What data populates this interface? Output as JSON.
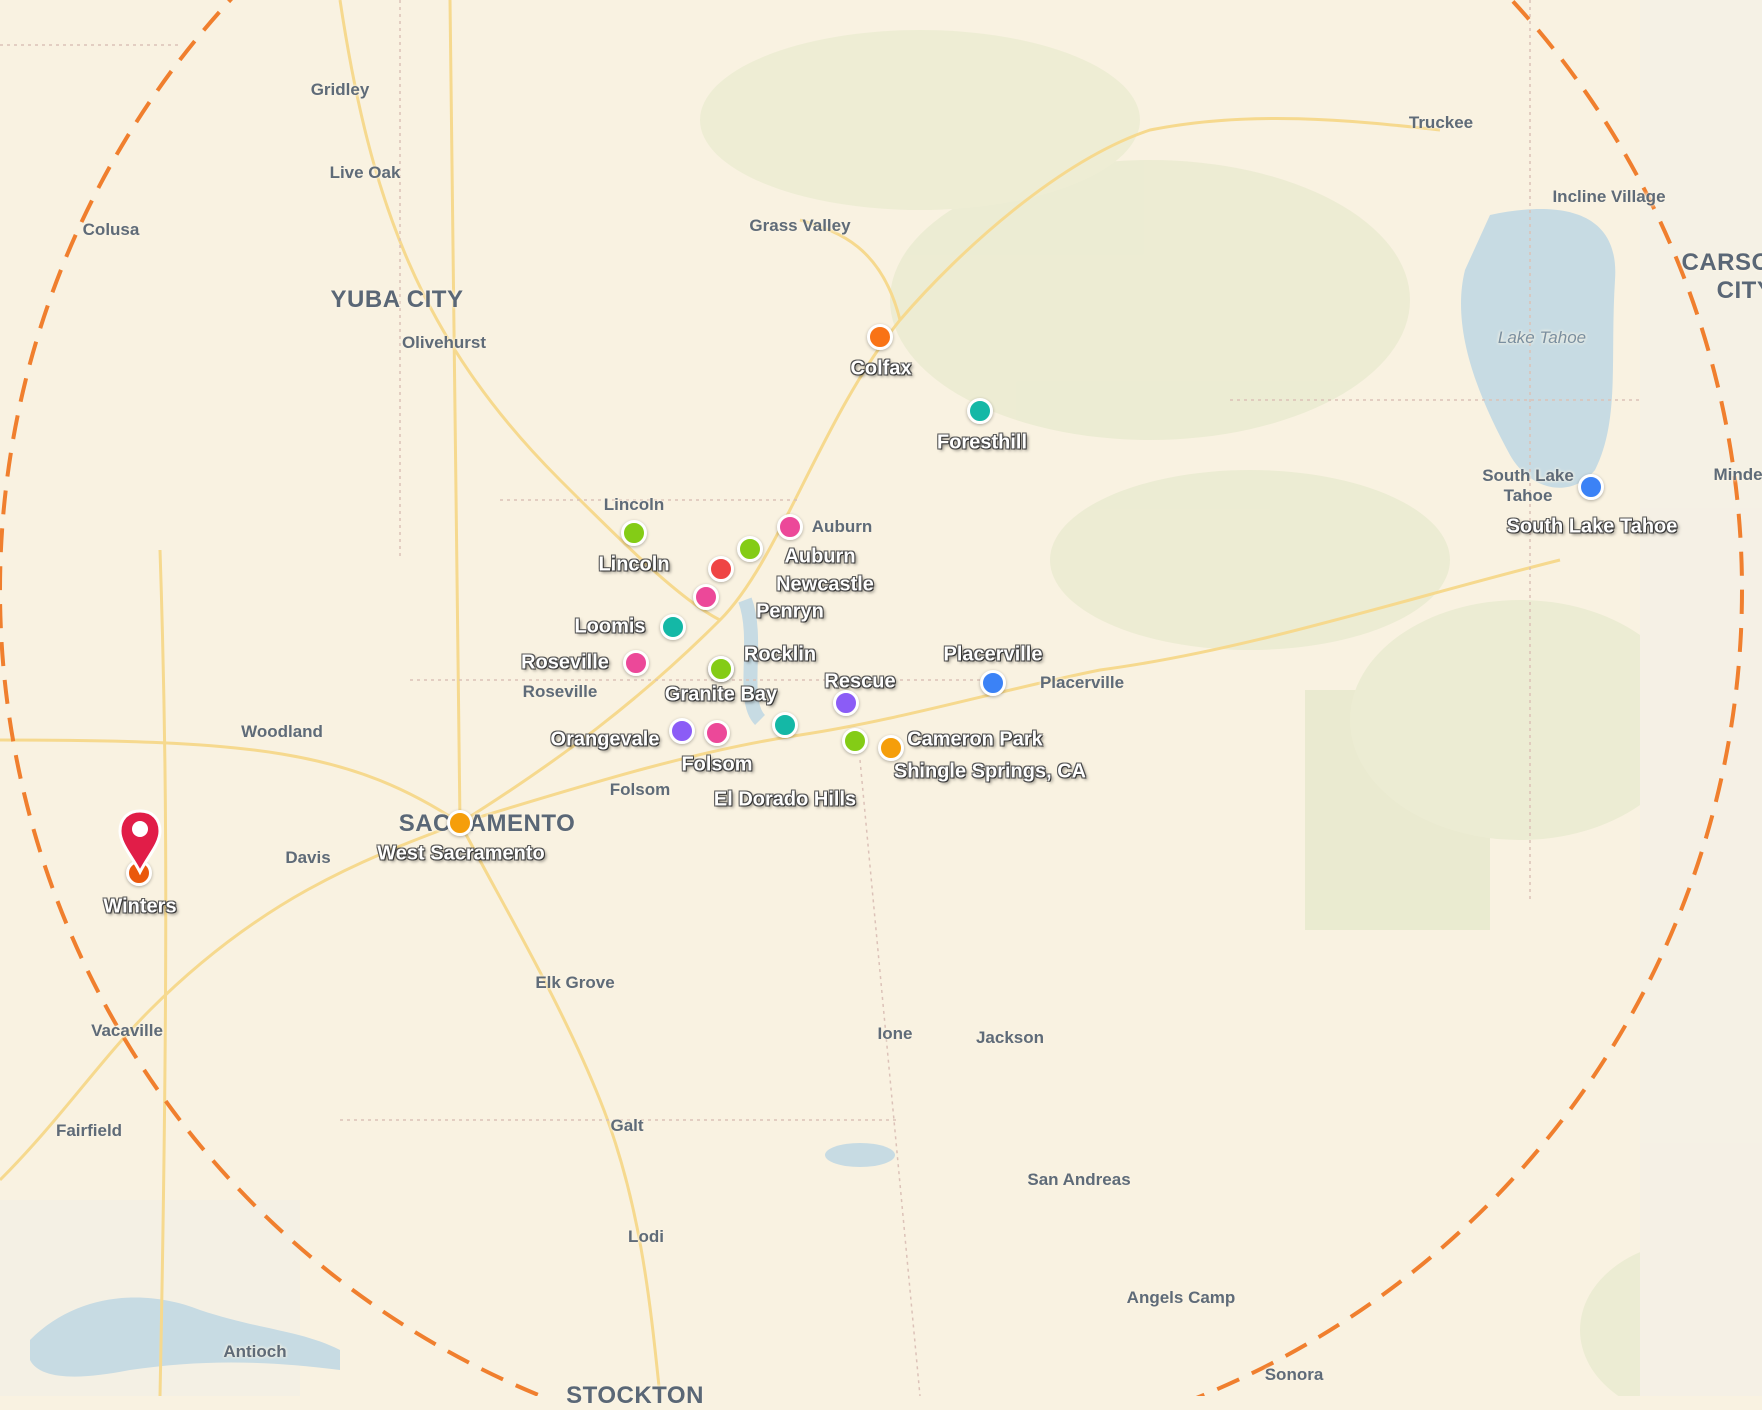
{
  "map": {
    "radius_circle_color": "#f07f2e",
    "places": [
      {
        "name": "Gridley",
        "type": "town"
      },
      {
        "name": "Live Oak",
        "type": "town"
      },
      {
        "name": "Colusa",
        "type": "town"
      },
      {
        "name": "YUBA CITY",
        "type": "city"
      },
      {
        "name": "Olivehurst",
        "type": "town"
      },
      {
        "name": "Grass Valley",
        "type": "town"
      },
      {
        "name": "Truckee",
        "type": "town"
      },
      {
        "name": "Incline Village",
        "type": "town"
      },
      {
        "name": "CARSON",
        "type": "city"
      },
      {
        "name": "CITY",
        "type": "city"
      },
      {
        "name": "Lake Tahoe",
        "type": "water"
      },
      {
        "name": "Minde",
        "type": "town"
      },
      {
        "name": "Woodland",
        "type": "town"
      },
      {
        "name": "Davis",
        "type": "town"
      },
      {
        "name": "SACRAMENTO",
        "type": "city"
      },
      {
        "name": "Elk Grove",
        "type": "town"
      },
      {
        "name": "Vacaville",
        "type": "town"
      },
      {
        "name": "Fairfield",
        "type": "town"
      },
      {
        "name": "Ione",
        "type": "town"
      },
      {
        "name": "Jackson",
        "type": "town"
      },
      {
        "name": "Galt",
        "type": "town"
      },
      {
        "name": "San Andreas",
        "type": "town"
      },
      {
        "name": "Lodi",
        "type": "town"
      },
      {
        "name": "Angels Camp",
        "type": "town"
      },
      {
        "name": "Sonora",
        "type": "town"
      },
      {
        "name": "Antioch",
        "type": "town"
      },
      {
        "name": "STOCKTON",
        "type": "city"
      },
      {
        "name": "Lincoln",
        "type": "town"
      },
      {
        "name": "Auburn",
        "type": "town"
      },
      {
        "name": "Roseville",
        "type": "town"
      },
      {
        "name": "Folsom",
        "type": "town"
      },
      {
        "name": "Placerville",
        "type": "town"
      },
      {
        "name": "South Lake",
        "type": "town"
      },
      {
        "name": "Tahoe",
        "type": "town"
      }
    ],
    "markers": [
      {
        "label": "Colfax",
        "color": "#f97316"
      },
      {
        "label": "Foresthill",
        "color": "#14b8a6"
      },
      {
        "label": "Lincoln",
        "color": "#84cc16"
      },
      {
        "label": "",
        "color": "#ec4899"
      },
      {
        "label": "Auburn",
        "color": "#84cc16"
      },
      {
        "label": "Newcastle",
        "color": "#ef4444"
      },
      {
        "label": "Penryn",
        "color": "#ec4899"
      },
      {
        "label": "Loomis",
        "color": "#14b8a6"
      },
      {
        "label": "Rocklin",
        "color": "#84cc16"
      },
      {
        "label": "Roseville",
        "color": "#ec4899"
      },
      {
        "label": "Granite Bay",
        "color": "#84cc16"
      },
      {
        "label": "Orangevale",
        "color": "#8b5cf6"
      },
      {
        "label": "Folsom",
        "color": "#ec4899"
      },
      {
        "label": "El Dorado Hills",
        "color": "#14b8a6"
      },
      {
        "label": "Rescue",
        "color": "#8b5cf6"
      },
      {
        "label": "Cameron Park",
        "color": "#84cc16"
      },
      {
        "label": "Shingle Springs, CA",
        "color": "#f59e0b"
      },
      {
        "label": "Placerville",
        "color": "#3b82f6"
      },
      {
        "label": "South Lake Tahoe",
        "color": "#3b82f6"
      },
      {
        "label": "West Sacramento",
        "color": "#f59e0b"
      },
      {
        "label": "Winters",
        "color": "#ea580c"
      }
    ],
    "center_pin": {
      "label": "Winters",
      "color": "#e11d48",
      "icon": "map-pin-icon"
    }
  }
}
